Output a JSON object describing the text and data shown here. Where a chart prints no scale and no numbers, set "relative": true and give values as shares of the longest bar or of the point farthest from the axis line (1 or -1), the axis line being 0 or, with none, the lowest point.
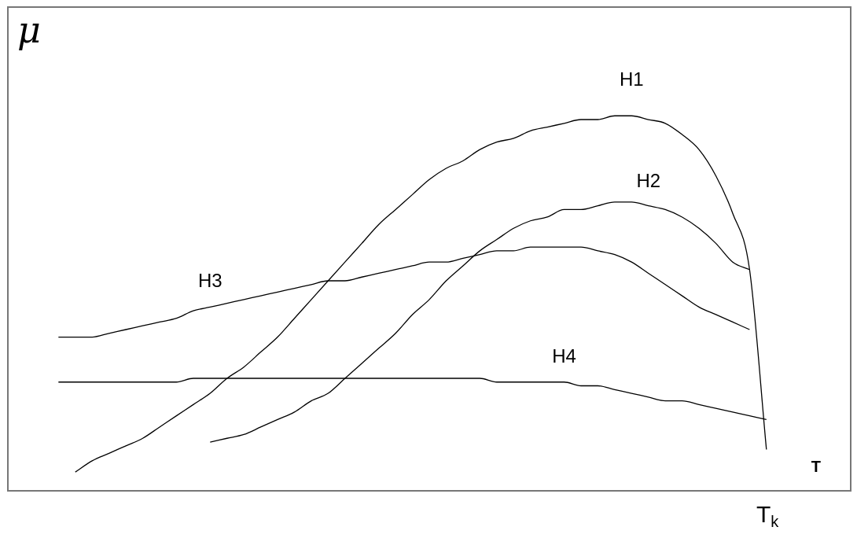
{
  "chart_data": {
    "type": "line",
    "relative": true,
    "ylabel": "μ",
    "xlabel": "T",
    "legend": false,
    "marker": "none",
    "line_style": "solid",
    "annotations": [
      "T$_{k}$"
    ],
    "categories": [
      null,
      null,
      null,
      null,
      null,
      null,
      null,
      null,
      null,
      null,
      null,
      null,
      null,
      null,
      null,
      null,
      null,
      null,
      null,
      null,
      null,
      null,
      null,
      null,
      null,
      null,
      null,
      null,
      null,
      null,
      null,
      null,
      null,
      null,
      null,
      null,
      null,
      null,
      null,
      null,
      null,
      null,
      null,
      null,
      null,
      null,
      null,
      null,
      null,
      null,
      null
    ],
    "series": [
      {
        "name": "H1",
        "color": "#000000",
        "values": [
          null,
          null,
          null,
          null,
          0.05,
          0.08,
          0.1,
          0.12,
          0.14,
          0.17,
          0.2,
          0.23,
          0.26,
          0.3,
          0.33,
          0.37,
          0.41,
          0.46,
          0.51,
          0.56,
          0.61,
          0.66,
          0.71,
          0.75,
          0.79,
          0.83,
          0.86,
          0.88,
          0.91,
          0.93,
          0.94,
          0.96,
          0.97,
          0.98,
          0.99,
          0.99,
          1.0,
          1.0,
          0.99,
          0.98,
          0.95,
          0.91,
          0.84,
          0.74,
          0.59,
          0.11,
          null,
          null,
          null,
          null,
          null
        ]
      },
      {
        "name": "H2",
        "color": "#000000",
        "values": [
          null,
          null,
          null,
          null,
          null,
          null,
          null,
          null,
          null,
          null,
          null,
          null,
          0.13,
          0.14,
          0.15,
          0.17,
          0.19,
          0.21,
          0.24,
          0.26,
          0.3,
          0.34,
          0.38,
          0.42,
          0.47,
          0.51,
          0.56,
          0.6,
          0.64,
          0.67,
          0.7,
          0.72,
          0.73,
          0.75,
          0.75,
          0.76,
          0.77,
          0.77,
          0.76,
          0.75,
          0.73,
          0.7,
          0.66,
          0.61,
          0.59,
          null,
          null,
          null,
          null,
          null,
          null
        ]
      },
      {
        "name": "H3",
        "color": "#000000",
        "values": [
          null,
          null,
          null,
          0.41,
          0.41,
          0.41,
          0.42,
          0.43,
          0.44,
          0.45,
          0.46,
          0.48,
          0.49,
          0.5,
          0.51,
          0.52,
          0.53,
          0.54,
          0.55,
          0.56,
          0.56,
          0.57,
          0.58,
          0.59,
          0.6,
          0.61,
          0.61,
          0.62,
          0.63,
          0.64,
          0.64,
          0.65,
          0.65,
          0.65,
          0.65,
          0.64,
          0.63,
          0.61,
          0.58,
          0.55,
          0.52,
          0.49,
          0.47,
          0.45,
          0.43,
          null,
          null,
          null,
          null,
          null,
          null
        ]
      },
      {
        "name": "H4",
        "color": "#000000",
        "values": [
          null,
          null,
          null,
          0.29,
          0.29,
          0.29,
          0.29,
          0.29,
          0.29,
          0.29,
          0.29,
          0.3,
          0.3,
          0.3,
          0.3,
          0.3,
          0.3,
          0.3,
          0.3,
          0.3,
          0.3,
          0.3,
          0.3,
          0.3,
          0.3,
          0.3,
          0.3,
          0.3,
          0.3,
          0.29,
          0.29,
          0.29,
          0.29,
          0.29,
          0.28,
          0.28,
          0.27,
          0.26,
          0.25,
          0.24,
          0.24,
          0.23,
          0.22,
          0.21,
          0.2,
          0.19,
          null,
          null,
          null,
          null,
          null
        ]
      }
    ]
  }
}
